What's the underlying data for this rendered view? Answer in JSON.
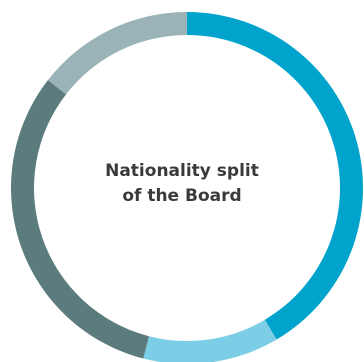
{
  "chart_data": {
    "type": "pie",
    "style": "donut",
    "center_title_lines": [
      "Nationality split",
      "of the Board"
    ],
    "legend": "none",
    "slices": [
      {
        "value": 41.5,
        "color": "#00a3cc"
      },
      {
        "value": 12.5,
        "color": "#7ccde6"
      },
      {
        "value": 31.5,
        "color": "#5b7b7c"
      },
      {
        "value": 14.5,
        "color": "#9ab3b6"
      }
    ]
  }
}
